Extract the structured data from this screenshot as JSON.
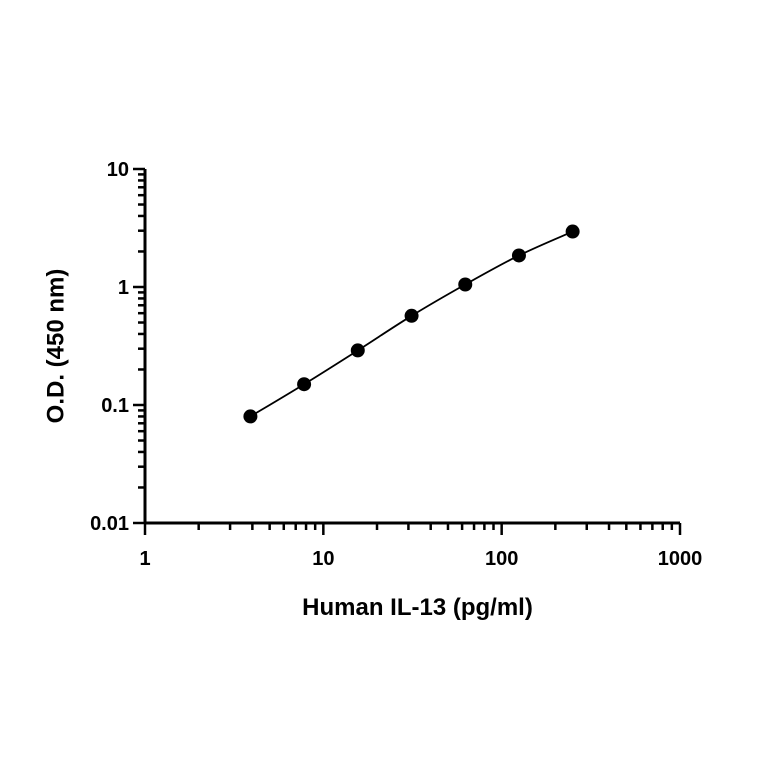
{
  "chart_data": {
    "type": "scatter",
    "xlabel": "Human IL-13  (pg/ml)",
    "ylabel": "O.D. (450 nm)",
    "x_scale": "log",
    "y_scale": "log",
    "xlim": [
      1,
      1000
    ],
    "ylim": [
      0.01,
      10
    ],
    "x_ticks": [
      "1",
      "10",
      "100",
      "1000"
    ],
    "y_ticks": [
      "0.01",
      "0.1",
      "1",
      "10"
    ],
    "grid": false,
    "legend": "none",
    "fit_line": true,
    "series": [
      {
        "x": [
          3.9,
          7.8,
          15.6,
          31.25,
          62.5,
          125,
          250
        ],
        "y": [
          0.08,
          0.15,
          0.29,
          0.57,
          1.05,
          1.85,
          2.95
        ]
      }
    ],
    "colors": {
      "marker": "#000000",
      "line": "#000000"
    }
  }
}
